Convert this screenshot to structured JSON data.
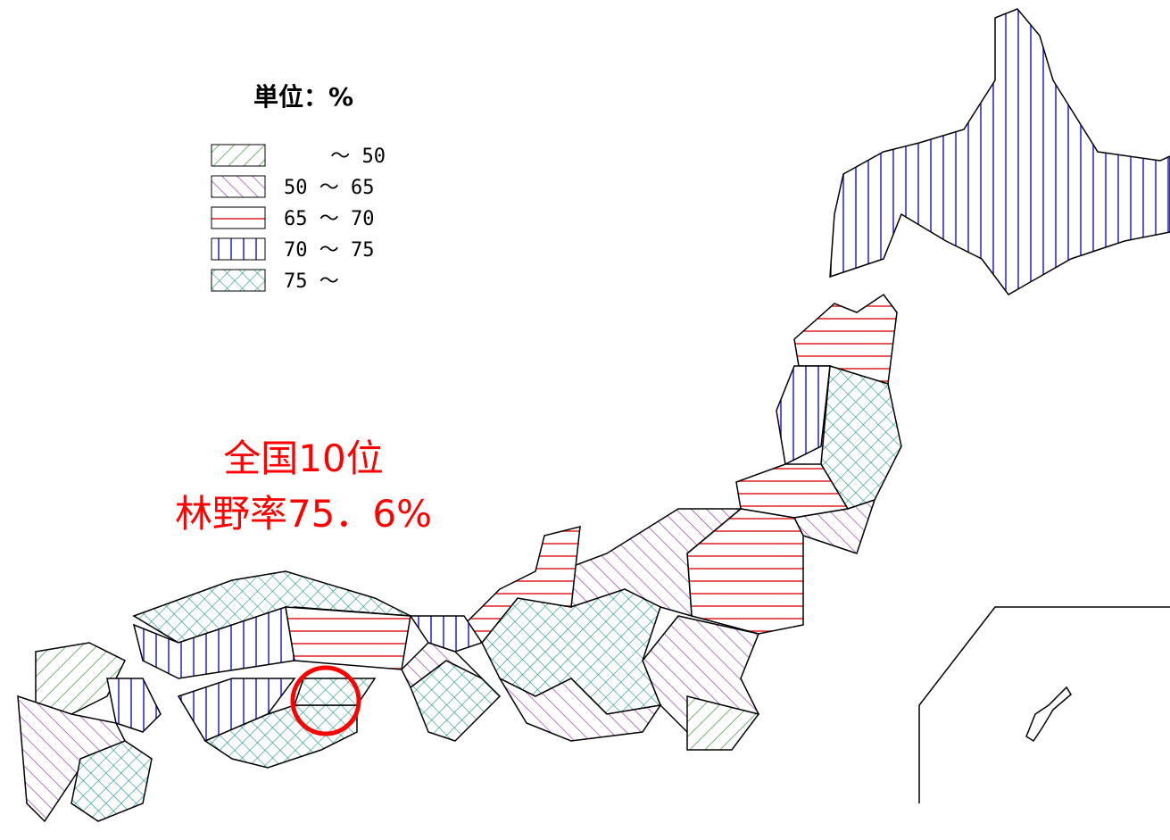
{
  "legend": {
    "title": "単位：%",
    "items": [
      {
        "label": "～ 50"
      },
      {
        "label": "50 ～ 65"
      },
      {
        "label": "65 ～ 70"
      },
      {
        "label": "70 ～ 75"
      },
      {
        "label": "75 ～"
      }
    ]
  },
  "annotation": {
    "lines": [
      "全国10位",
      "林野率75．6%"
    ]
  }
}
